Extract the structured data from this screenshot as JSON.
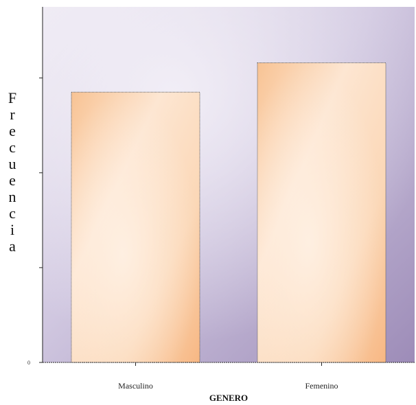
{
  "chart_data": {
    "type": "bar",
    "title": "",
    "xlabel": "GENERO",
    "ylabel": "Frecuencia",
    "categories": [
      "Masculino",
      "Femenino"
    ],
    "values": [
      285,
      316
    ],
    "ylim": [
      0,
      375
    ],
    "yticks": [
      0,
      100,
      200,
      300
    ],
    "ytick_labels": [
      "0",
      "",
      "",
      ""
    ],
    "grid": false,
    "legend": "none",
    "colors": {
      "plot_bg_light": "#e6e0ee",
      "plot_bg_dark": "#a494bd",
      "bar_light": "#fce8d6",
      "bar_dark": "#f8bd88",
      "bar_edge": "#555555"
    }
  }
}
